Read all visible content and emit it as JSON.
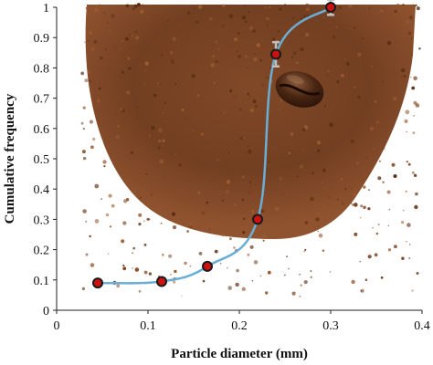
{
  "chart_data": {
    "type": "line",
    "xlabel": "Particle diameter (mm)",
    "ylabel": "Cumulative frequency",
    "xlim": [
      0,
      0.4
    ],
    "ylim": [
      0,
      1
    ],
    "x_ticks": [
      "0",
      "0.1",
      "0.2",
      "0.3",
      "0.4"
    ],
    "y_ticks": [
      "0",
      "0.1",
      "0.2",
      "0.3",
      "0.4",
      "0.5",
      "0.6",
      "0.7",
      "0.8",
      "0.9",
      "1"
    ],
    "grid": false,
    "series": [
      {
        "x": [
          0.045,
          0.115,
          0.165,
          0.22,
          0.24,
          0.3
        ],
        "y": [
          0.09,
          0.095,
          0.145,
          0.3,
          0.845,
          1.0
        ],
        "error": [
          0,
          0,
          0,
          0,
          0.04,
          0.025
        ],
        "line_color": "#6aaed6",
        "marker_color": "#cc1111",
        "marker_edge": "#1a1a1a",
        "errorbar_color": "#bfbfbf"
      }
    ],
    "background": "photo of ground coffee with a coffee bean"
  },
  "colors": {
    "coffee_dark": "#5a2e12",
    "coffee_mid": "#7a4220",
    "coffee_light": "#9a5a30",
    "bean": "#4a2a16"
  }
}
